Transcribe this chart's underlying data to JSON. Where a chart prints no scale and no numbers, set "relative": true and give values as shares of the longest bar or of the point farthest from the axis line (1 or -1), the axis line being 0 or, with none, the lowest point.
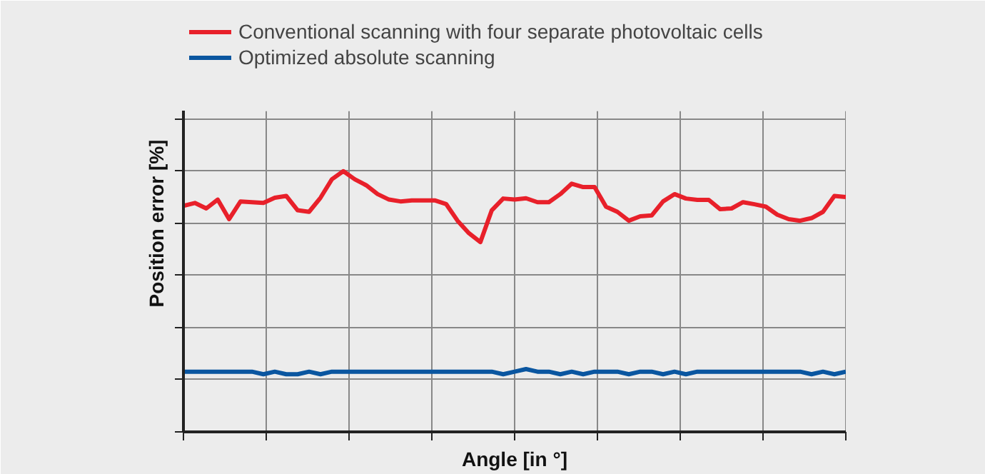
{
  "chart_data": {
    "type": "line",
    "relative": true,
    "xlabel": "Angle [in °]",
    "ylabel": "Position error [%]",
    "categories": [
      null,
      null,
      null,
      null,
      null,
      null,
      null,
      null,
      null,
      null,
      null,
      null,
      null,
      null,
      null,
      null,
      null,
      null,
      null,
      null,
      null,
      null,
      null,
      null,
      null,
      null,
      null,
      null,
      null,
      null,
      null,
      null,
      null,
      null,
      null,
      null,
      null,
      null,
      null,
      null,
      null,
      null,
      null,
      null,
      null,
      null,
      null,
      null,
      null,
      null,
      null,
      null,
      null,
      null,
      null,
      null,
      null,
      null,
      null
    ],
    "series": [
      {
        "name": "Conventional scanning with four separate photovoltaic cells",
        "color": "#e8202a",
        "values": [
          0.867,
          0.878,
          0.857,
          0.891,
          0.816,
          0.884,
          0.881,
          0.878,
          0.898,
          0.905,
          0.85,
          0.844,
          0.898,
          0.969,
          1,
          0.969,
          0.946,
          0.912,
          0.891,
          0.884,
          0.888,
          0.888,
          0.888,
          0.874,
          0.81,
          0.762,
          0.728,
          0.85,
          0.895,
          0.891,
          0.896,
          0.881,
          0.881,
          0.912,
          0.952,
          0.939,
          0.939,
          0.864,
          0.844,
          0.81,
          0.827,
          0.83,
          0.884,
          0.912,
          0.895,
          0.89,
          0.89,
          0.854,
          0.857,
          0.881,
          0.873,
          0.864,
          0.833,
          0.816,
          0.81,
          0.82,
          0.844,
          0.905,
          0.901
        ]
      },
      {
        "name": "Optimized absolute scanning",
        "color": "#0a56a0",
        "values": [
          0.231,
          0.231,
          0.231,
          0.231,
          0.231,
          0.231,
          0.231,
          0.221,
          0.231,
          0.221,
          0.221,
          0.231,
          0.221,
          0.231,
          0.231,
          0.231,
          0.231,
          0.231,
          0.231,
          0.231,
          0.231,
          0.231,
          0.231,
          0.231,
          0.231,
          0.231,
          0.231,
          0.231,
          0.221,
          0.231,
          0.241,
          0.231,
          0.231,
          0.221,
          0.231,
          0.221,
          0.231,
          0.231,
          0.231,
          0.221,
          0.231,
          0.231,
          0.221,
          0.231,
          0.221,
          0.231,
          0.231,
          0.231,
          0.231,
          0.231,
          0.231,
          0.231,
          0.231,
          0.231,
          0.231,
          0.221,
          0.231,
          0.221,
          0.231
        ]
      }
    ],
    "grid": true,
    "legend": "top",
    "tick_labels": false,
    "marker": "none",
    "line_style": "solid"
  }
}
